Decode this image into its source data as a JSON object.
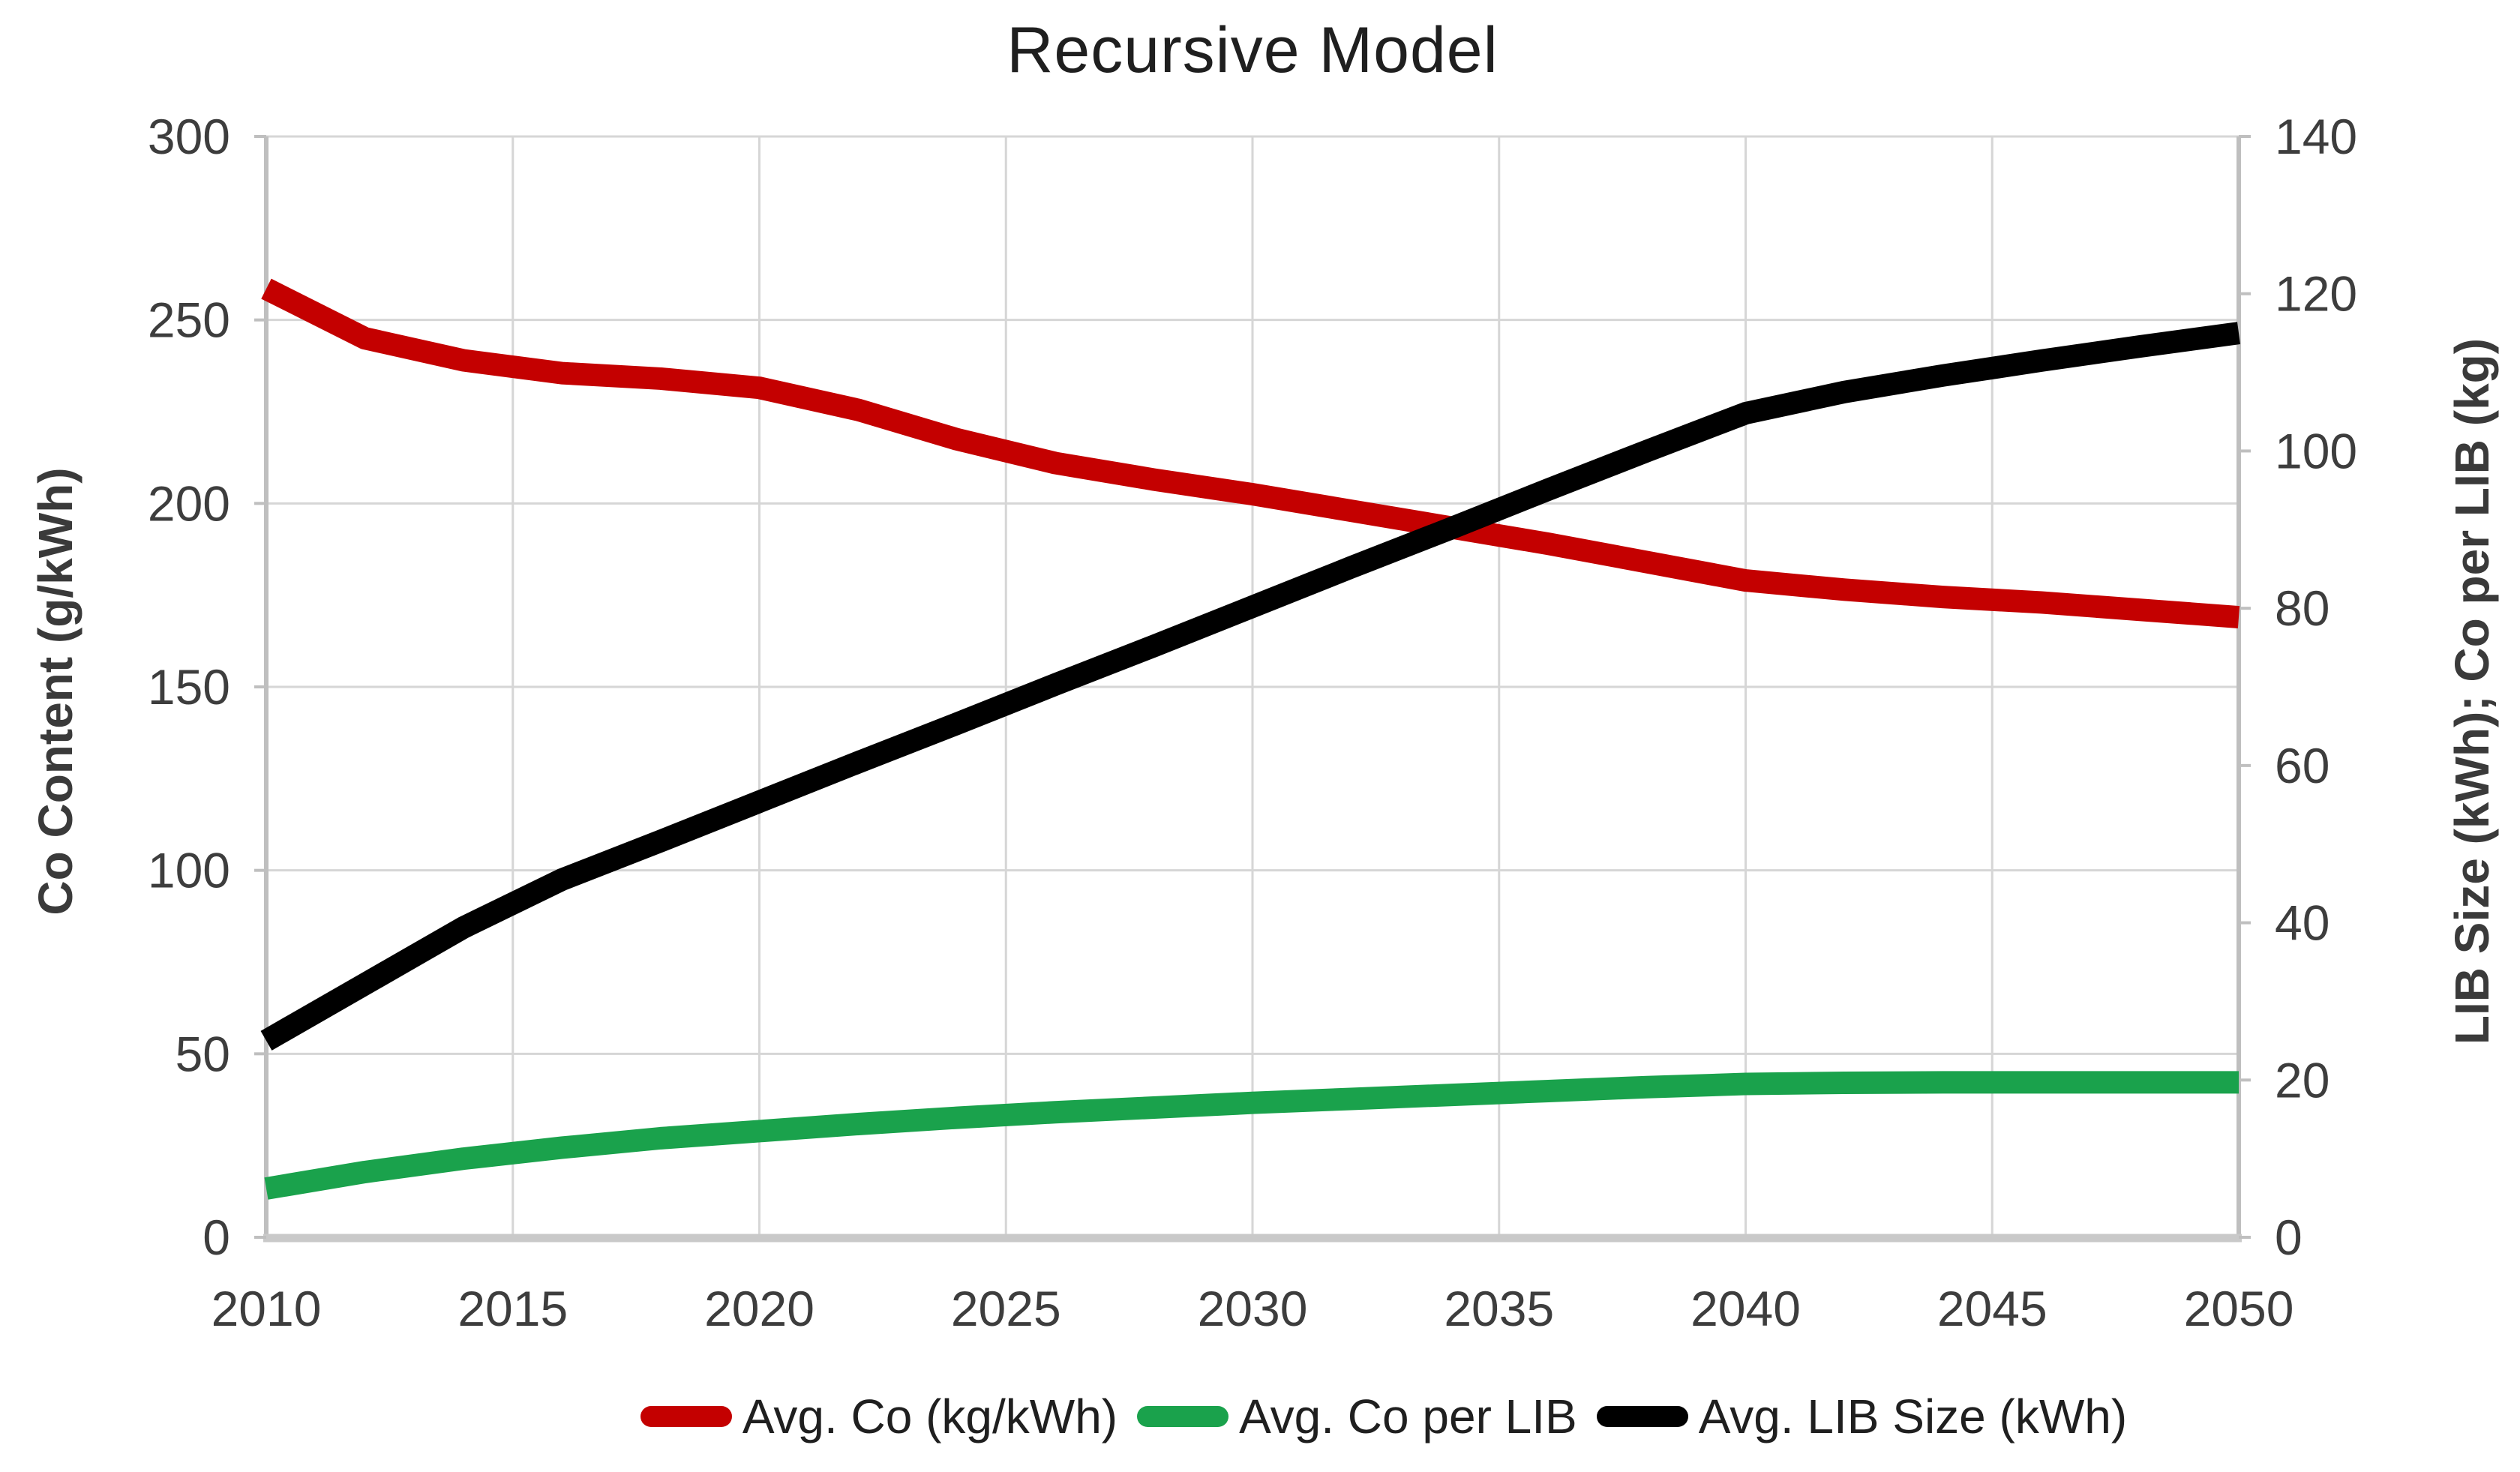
{
  "title": "Recursive Model",
  "axes": {
    "left": {
      "label": "Co Content (g/kWh)",
      "range": [
        0,
        300
      ],
      "ticks": [
        300,
        250,
        200,
        150,
        100,
        50,
        0
      ]
    },
    "right": {
      "label": "LIB Size (kWh); Co per LIB (kg)",
      "range": [
        0,
        140
      ],
      "ticks": [
        140,
        120,
        100,
        80,
        60,
        40,
        20,
        0
      ]
    },
    "x": {
      "range": [
        2010,
        2050
      ],
      "ticks": [
        2010,
        2015,
        2020,
        2025,
        2030,
        2035,
        2040,
        2045,
        2050
      ]
    }
  },
  "chart_data": {
    "type": "line",
    "title": "Recursive Model",
    "xlabel": "",
    "ylabel_left": "Co Content (g/kWh)",
    "ylabel_right": "LIB Size (kWh); Co per LIB (kg)",
    "ylim_left": [
      0,
      300
    ],
    "ylim_right": [
      0,
      140
    ],
    "xlim": [
      2010,
      2050
    ],
    "grid": true,
    "legend_position": "bottom",
    "x": [
      2010,
      2012,
      2014,
      2016,
      2018,
      2020,
      2022,
      2024,
      2026,
      2028,
      2030,
      2032,
      2034,
      2036,
      2038,
      2040,
      2042,
      2044,
      2046,
      2048,
      2050
    ],
    "series": [
      {
        "name": "Avg. Co (kg/kWh)",
        "axis": "left",
        "color": "#c40000",
        "values": [
          258.5,
          245,
          239,
          235.5,
          234,
          231.5,
          225.5,
          217.5,
          211,
          206.5,
          202.5,
          198,
          193.5,
          189,
          184,
          179,
          176.5,
          174.5,
          173,
          171,
          169
        ]
      },
      {
        "name": "Avg. Co per LIB",
        "axis": "right",
        "color": "#1aa24c",
        "values": [
          6.2,
          8.3,
          10,
          11.4,
          12.6,
          13.5,
          14.4,
          15.2,
          15.9,
          16.5,
          17.1,
          17.6,
          18.1,
          18.6,
          19.1,
          19.5,
          19.65,
          19.7,
          19.7,
          19.7,
          19.7
        ]
      },
      {
        "name": "Avg. LIB Size (kWh)",
        "axis": "right",
        "color": "#000000",
        "values": [
          25,
          32.2,
          39.4,
          45.5,
          50.4,
          55.4,
          60.4,
          65.3,
          70.3,
          75.2,
          80.2,
          85.2,
          90.1,
          95.1,
          100,
          104.8,
          107.5,
          109.6,
          111.5,
          113.3,
          115
        ]
      }
    ]
  },
  "colors": {
    "gridline": "#d6d6d6",
    "axis_line": "#bfbfbf",
    "bottom_axis": "#c9c9c9",
    "tick_text": "#3d3d3d",
    "title_text": "#1f1f1f"
  }
}
